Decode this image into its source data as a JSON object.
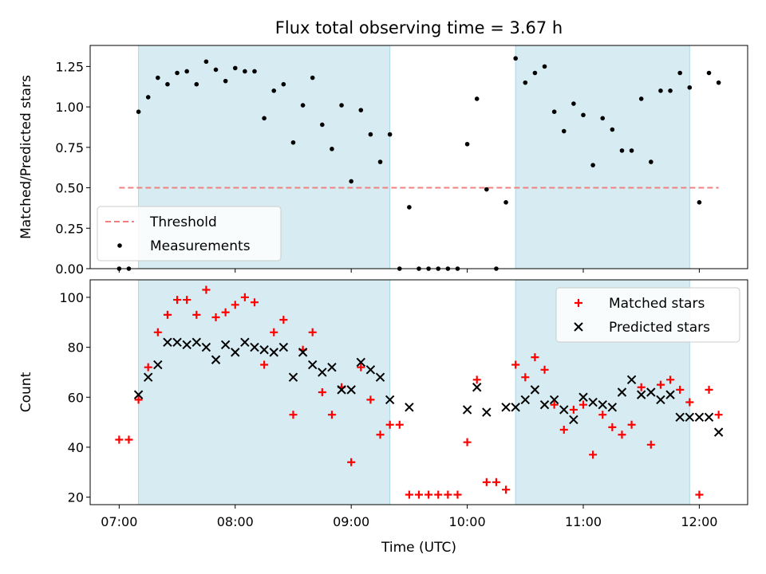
{
  "figure": {
    "title": "Flux total observing time = 3.67 h",
    "xlabel": "Time (UTC)"
  },
  "chart_data": [
    {
      "type": "scatter",
      "panel": "top",
      "ylabel": "Matched/Predicted stars",
      "xlim": [
        "06:45",
        "12:25"
      ],
      "ylim": [
        0,
        1.38
      ],
      "x_ticks": [
        "07:00",
        "08:00",
        "09:00",
        "10:00",
        "11:00",
        "12:00"
      ],
      "y_ticks": [
        0.0,
        0.25,
        0.5,
        0.75,
        1.0,
        1.25
      ],
      "y_tick_labels": [
        "0.00",
        "0.25",
        "0.50",
        "0.75",
        "1.00",
        "1.25"
      ],
      "grid": false,
      "legend_position": "lower-left",
      "shaded_intervals": [
        [
          "07:10",
          "09:20"
        ],
        [
          "10:25",
          "11:55"
        ]
      ],
      "shade_color": "#add8e6",
      "threshold": {
        "name": "Threshold",
        "value": 0.5,
        "x_range": [
          "07:00",
          "12:10"
        ],
        "color": "#f08080",
        "style": "dashed"
      },
      "series": [
        {
          "name": "Measurements",
          "color": "#000000",
          "marker": "dot",
          "x": [
            "07:00",
            "07:05",
            "07:10",
            "07:15",
            "07:20",
            "07:25",
            "07:30",
            "07:35",
            "07:40",
            "07:45",
            "07:50",
            "07:55",
            "08:00",
            "08:05",
            "08:10",
            "08:15",
            "08:20",
            "08:25",
            "08:30",
            "08:35",
            "08:40",
            "08:45",
            "08:50",
            "08:55",
            "09:00",
            "09:05",
            "09:10",
            "09:15",
            "09:20",
            "09:25",
            "09:30",
            "09:35",
            "09:40",
            "09:45",
            "09:50",
            "09:55",
            "10:00",
            "10:05",
            "10:10",
            "10:15",
            "10:20",
            "10:25",
            "10:30",
            "10:35",
            "10:40",
            "10:45",
            "10:50",
            "10:55",
            "11:00",
            "11:05",
            "11:10",
            "11:15",
            "11:20",
            "11:25",
            "11:30",
            "11:35",
            "11:40",
            "11:45",
            "11:50",
            "11:55",
            "12:00",
            "12:05",
            "12:10"
          ],
          "y": [
            0.0,
            0.0,
            0.97,
            1.06,
            1.18,
            1.14,
            1.21,
            1.22,
            1.14,
            1.28,
            1.23,
            1.16,
            1.24,
            1.22,
            1.22,
            0.93,
            1.1,
            1.14,
            0.78,
            1.01,
            1.18,
            0.89,
            0.74,
            1.01,
            0.54,
            0.98,
            0.83,
            0.66,
            0.83,
            0.0,
            0.38,
            0.0,
            0.0,
            0.0,
            0.0,
            0.0,
            0.77,
            1.05,
            0.49,
            0.0,
            0.41,
            1.3,
            1.15,
            1.21,
            1.25,
            0.97,
            0.85,
            1.02,
            0.95,
            0.64,
            0.93,
            0.86,
            0.73,
            0.73,
            1.05,
            0.66,
            1.1,
            1.1,
            1.21,
            1.12,
            0.41,
            1.21,
            1.15
          ]
        }
      ]
    },
    {
      "type": "scatter",
      "panel": "bottom",
      "ylabel": "Count",
      "xlim": [
        "06:45",
        "12:25"
      ],
      "ylim": [
        17,
        107
      ],
      "x_ticks": [
        "07:00",
        "08:00",
        "09:00",
        "10:00",
        "11:00",
        "12:00"
      ],
      "y_ticks": [
        20,
        40,
        60,
        80,
        100
      ],
      "y_tick_labels": [
        "20",
        "40",
        "60",
        "80",
        "100"
      ],
      "grid": false,
      "legend_position": "upper-right",
      "shaded_intervals": [
        [
          "07:10",
          "09:20"
        ],
        [
          "10:25",
          "11:55"
        ]
      ],
      "shade_color": "#add8e6",
      "series": [
        {
          "name": "Matched stars",
          "color": "#ff0000",
          "marker": "plus",
          "x": [
            "07:00",
            "07:05",
            "07:10",
            "07:15",
            "07:20",
            "07:25",
            "07:30",
            "07:35",
            "07:40",
            "07:45",
            "07:50",
            "07:55",
            "08:00",
            "08:05",
            "08:10",
            "08:15",
            "08:20",
            "08:25",
            "08:30",
            "08:35",
            "08:40",
            "08:45",
            "08:50",
            "08:55",
            "09:00",
            "09:05",
            "09:10",
            "09:15",
            "09:20",
            "09:25",
            "09:30",
            "09:35",
            "09:40",
            "09:45",
            "09:50",
            "09:55",
            "10:00",
            "10:05",
            "10:10",
            "10:15",
            "10:20",
            "10:25",
            "10:30",
            "10:35",
            "10:40",
            "10:45",
            "10:50",
            "10:55",
            "11:00",
            "11:05",
            "11:10",
            "11:15",
            "11:20",
            "11:25",
            "11:30",
            "11:35",
            "11:40",
            "11:45",
            "11:50",
            "11:55",
            "12:00",
            "12:05",
            "12:10"
          ],
          "y": [
            43,
            43,
            59,
            72,
            86,
            93,
            99,
            99,
            93,
            103,
            92,
            94,
            97,
            100,
            98,
            73,
            86,
            91,
            53,
            79,
            86,
            62,
            53,
            64,
            34,
            72,
            59,
            45,
            49,
            49,
            21,
            21,
            21,
            21,
            21,
            21,
            42,
            67,
            26,
            26,
            23,
            73,
            68,
            76,
            71,
            57,
            47,
            55,
            57,
            37,
            53,
            48,
            45,
            49,
            64,
            41,
            65,
            67,
            63,
            58,
            21,
            63,
            53
          ]
        },
        {
          "name": "Predicted stars",
          "color": "#000000",
          "marker": "x",
          "x": [
            "07:10",
            "07:15",
            "07:20",
            "07:25",
            "07:30",
            "07:35",
            "07:40",
            "07:45",
            "07:50",
            "07:55",
            "08:00",
            "08:05",
            "08:10",
            "08:15",
            "08:20",
            "08:25",
            "08:30",
            "08:35",
            "08:40",
            "08:45",
            "08:50",
            "08:55",
            "09:00",
            "09:05",
            "09:10",
            "09:15",
            "09:20",
            "09:30",
            "10:00",
            "10:05",
            "10:10",
            "10:20",
            "10:25",
            "10:30",
            "10:35",
            "10:40",
            "10:45",
            "10:50",
            "10:55",
            "11:00",
            "11:05",
            "11:10",
            "11:15",
            "11:20",
            "11:25",
            "11:30",
            "11:35",
            "11:40",
            "11:45",
            "11:50",
            "11:55",
            "12:00",
            "12:05",
            "12:10"
          ],
          "y": [
            61,
            68,
            73,
            82,
            82,
            81,
            82,
            80,
            75,
            81,
            78,
            82,
            80,
            79,
            78,
            80,
            68,
            78,
            73,
            70,
            72,
            63,
            63,
            74,
            71,
            68,
            59,
            56,
            55,
            64,
            54,
            56,
            56,
            59,
            63,
            57,
            59,
            55,
            51,
            60,
            58,
            57,
            56,
            62,
            67,
            61,
            62,
            59,
            61,
            52,
            52,
            52,
            52,
            46
          ]
        }
      ]
    }
  ]
}
